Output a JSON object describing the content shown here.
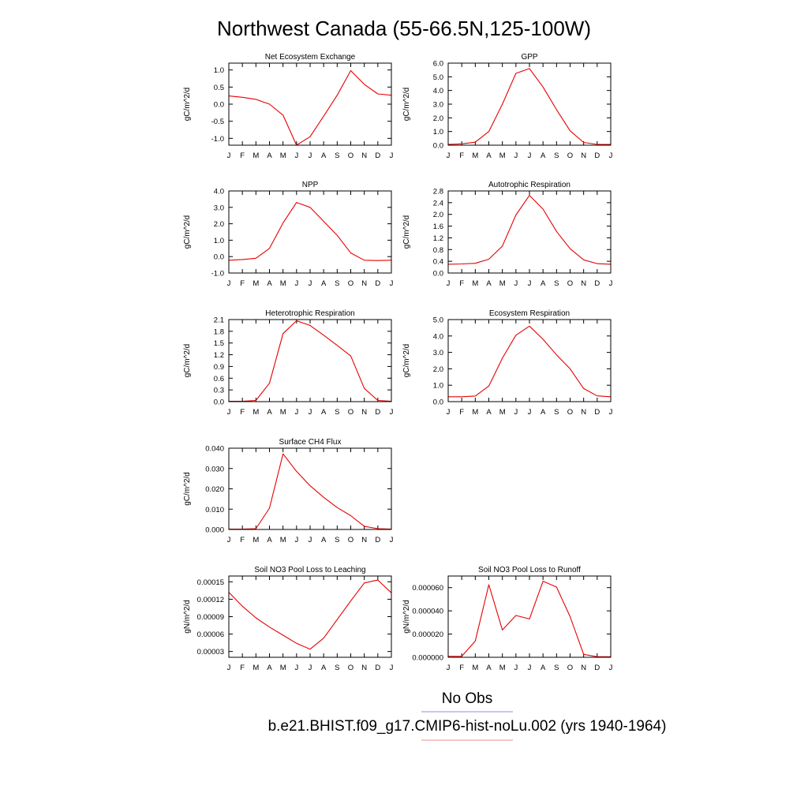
{
  "page": {
    "title": "Northwest Canada (55-66.5N,125-100W)"
  },
  "legend": {
    "items": [
      {
        "label": "No Obs",
        "color": "#8c8cf0"
      },
      {
        "label": "b.e21.BHIST.f09_g17.CMIP6-hist-noLu.002 (yrs 1940-1964)",
        "color": "#f08c8c"
      }
    ]
  },
  "chart_data": [
    {
      "id": "nee",
      "type": "line",
      "title": "Net Ecosystem Exchange",
      "ylabel": "gC/m^2/d",
      "ylim": [
        -1.2,
        1.2
      ],
      "yticks": [
        -1.0,
        -0.5,
        0.0,
        0.5,
        1.0
      ],
      "ytick_labels": [
        "-1.0",
        "-0.5",
        "0.0",
        "0.5",
        "1.0"
      ],
      "x": [
        "J",
        "F",
        "M",
        "A",
        "M",
        "J",
        "J",
        "A",
        "S",
        "O",
        "N",
        "D",
        "J"
      ],
      "series": [
        {
          "color": "#e60000",
          "values": [
            0.24,
            0.2,
            0.14,
            0.0,
            -0.32,
            -1.2,
            -0.95,
            -0.35,
            0.26,
            0.98,
            0.58,
            0.3,
            0.26
          ]
        }
      ]
    },
    {
      "id": "gpp",
      "type": "line",
      "title": "GPP",
      "ylabel": "gC/m^2/d",
      "ylim": [
        0.0,
        6.0
      ],
      "yticks": [
        0.0,
        1.0,
        2.0,
        3.0,
        4.0,
        5.0,
        6.0
      ],
      "ytick_labels": [
        "0.0",
        "1.0",
        "2.0",
        "3.0",
        "4.0",
        "5.0",
        "6.0"
      ],
      "x": [
        "J",
        "F",
        "M",
        "A",
        "M",
        "J",
        "J",
        "A",
        "S",
        "O",
        "N",
        "D",
        "J"
      ],
      "series": [
        {
          "color": "#e60000",
          "values": [
            0.05,
            0.1,
            0.22,
            1.0,
            3.0,
            5.25,
            5.6,
            4.25,
            2.6,
            1.05,
            0.2,
            0.06,
            0.05
          ]
        }
      ]
    },
    {
      "id": "npp",
      "type": "line",
      "title": "NPP",
      "ylabel": "gC/m^2/d",
      "ylim": [
        -1.0,
        4.0
      ],
      "yticks": [
        -1.0,
        0.0,
        1.0,
        2.0,
        3.0,
        4.0
      ],
      "ytick_labels": [
        "-1.0",
        "0.0",
        "1.0",
        "2.0",
        "3.0",
        "4.0"
      ],
      "x": [
        "J",
        "F",
        "M",
        "A",
        "M",
        "J",
        "J",
        "A",
        "S",
        "O",
        "N",
        "D",
        "J"
      ],
      "series": [
        {
          "color": "#e60000",
          "values": [
            -0.22,
            -0.18,
            -0.1,
            0.5,
            2.05,
            3.3,
            3.0,
            2.15,
            1.3,
            0.22,
            -0.22,
            -0.24,
            -0.22
          ]
        }
      ]
    },
    {
      "id": "ar",
      "type": "line",
      "title": "Autotrophic Respiration",
      "ylabel": "gC/m^2/d",
      "ylim": [
        0.0,
        2.8
      ],
      "yticks": [
        0.0,
        0.4,
        0.8,
        1.2,
        1.6,
        2.0,
        2.4,
        2.8
      ],
      "ytick_labels": [
        "0.0",
        "0.4",
        "0.8",
        "1.2",
        "1.6",
        "2.0",
        "2.4",
        "2.8"
      ],
      "x": [
        "J",
        "F",
        "M",
        "A",
        "M",
        "J",
        "J",
        "A",
        "S",
        "O",
        "N",
        "D",
        "J"
      ],
      "series": [
        {
          "color": "#e60000",
          "values": [
            0.3,
            0.31,
            0.33,
            0.47,
            0.92,
            1.98,
            2.65,
            2.18,
            1.42,
            0.83,
            0.45,
            0.32,
            0.3
          ]
        }
      ]
    },
    {
      "id": "hr",
      "type": "line",
      "title": "Heterotrophic Respiration",
      "ylabel": "gC/m^2/d",
      "ylim": [
        0.0,
        2.1
      ],
      "yticks": [
        0.0,
        0.3,
        0.6,
        0.9,
        1.2,
        1.5,
        1.8,
        2.1
      ],
      "ytick_labels": [
        "0.0",
        "0.3",
        "0.6",
        "0.9",
        "1.2",
        "1.5",
        "1.8",
        "2.1"
      ],
      "x": [
        "J",
        "F",
        "M",
        "A",
        "M",
        "J",
        "J",
        "A",
        "S",
        "O",
        "N",
        "D",
        "J"
      ],
      "series": [
        {
          "color": "#e60000",
          "values": [
            0.01,
            0.01,
            0.03,
            0.47,
            1.74,
            2.07,
            1.95,
            1.7,
            1.44,
            1.17,
            0.34,
            0.03,
            0.01
          ]
        }
      ]
    },
    {
      "id": "er",
      "type": "line",
      "title": "Ecosystem Respiration",
      "ylabel": "gC/m^2/d",
      "ylim": [
        0.0,
        5.0
      ],
      "yticks": [
        0.0,
        1.0,
        2.0,
        3.0,
        4.0,
        5.0
      ],
      "ytick_labels": [
        "0.0",
        "1.0",
        "2.0",
        "3.0",
        "4.0",
        "5.0"
      ],
      "x": [
        "J",
        "F",
        "M",
        "A",
        "M",
        "J",
        "J",
        "A",
        "S",
        "O",
        "N",
        "D",
        "J"
      ],
      "series": [
        {
          "color": "#e60000",
          "values": [
            0.3,
            0.3,
            0.34,
            0.95,
            2.65,
            4.05,
            4.6,
            3.8,
            2.85,
            2.0,
            0.8,
            0.35,
            0.3
          ]
        }
      ]
    },
    {
      "id": "ch4",
      "type": "line",
      "title": "Surface CH4 Flux",
      "ylabel": "gC/m^2/d",
      "ylim": [
        0.0,
        0.04
      ],
      "yticks": [
        0.0,
        0.01,
        0.02,
        0.03,
        0.04
      ],
      "ytick_labels": [
        "0.000",
        "0.010",
        "0.020",
        "0.030",
        "0.040"
      ],
      "x": [
        "J",
        "F",
        "M",
        "A",
        "M",
        "J",
        "J",
        "A",
        "S",
        "O",
        "N",
        "D",
        "J"
      ],
      "series": [
        {
          "color": "#e60000",
          "values": [
            0.0002,
            0.0002,
            0.0004,
            0.0105,
            0.0372,
            0.0286,
            0.0215,
            0.0158,
            0.0108,
            0.0068,
            0.0015,
            0.0004,
            0.0002
          ]
        }
      ]
    },
    {
      "id": "no3leach",
      "type": "line",
      "title": "Soil NO3 Pool Loss to Leaching",
      "ylabel": "gN/m^2/d",
      "ylim": [
        2e-05,
        0.00016
      ],
      "yticks": [
        3e-05,
        6e-05,
        9e-05,
        0.00012,
        0.00015
      ],
      "ytick_labels": [
        "0.00003",
        "0.00006",
        "0.00009",
        "0.00012",
        "0.00015"
      ],
      "x": [
        "J",
        "F",
        "M",
        "A",
        "M",
        "J",
        "J",
        "A",
        "S",
        "O",
        "N",
        "D",
        "J"
      ],
      "series": [
        {
          "color": "#e60000",
          "values": [
            0.000132,
            0.000108,
            8.8e-05,
            7.2e-05,
            5.8e-05,
            4.4e-05,
            3.4e-05,
            5.3e-05,
            8.5e-05,
            0.000117,
            0.000148,
            0.000153,
            0.000131
          ]
        }
      ]
    },
    {
      "id": "no3runoff",
      "type": "line",
      "title": "Soil NO3 Pool Loss to Runoff",
      "ylabel": "gN/m^2/d",
      "ylim": [
        0.0,
        7e-05
      ],
      "yticks": [
        0.0,
        2e-05,
        4e-05,
        6e-05
      ],
      "ytick_labels": [
        "0.000000",
        "0.000020",
        "0.000040",
        "0.000060"
      ],
      "x": [
        "J",
        "F",
        "M",
        "A",
        "M",
        "J",
        "J",
        "A",
        "S",
        "O",
        "N",
        "D",
        "J"
      ],
      "series": [
        {
          "color": "#e60000",
          "values": [
            8e-07,
            8e-07,
            1.4e-05,
            6.25e-05,
            2.35e-05,
            3.6e-05,
            3.3e-05,
            6.55e-05,
            6.05e-05,
            3.5e-05,
            2.5e-06,
            5e-07,
            5e-07
          ]
        }
      ]
    }
  ]
}
